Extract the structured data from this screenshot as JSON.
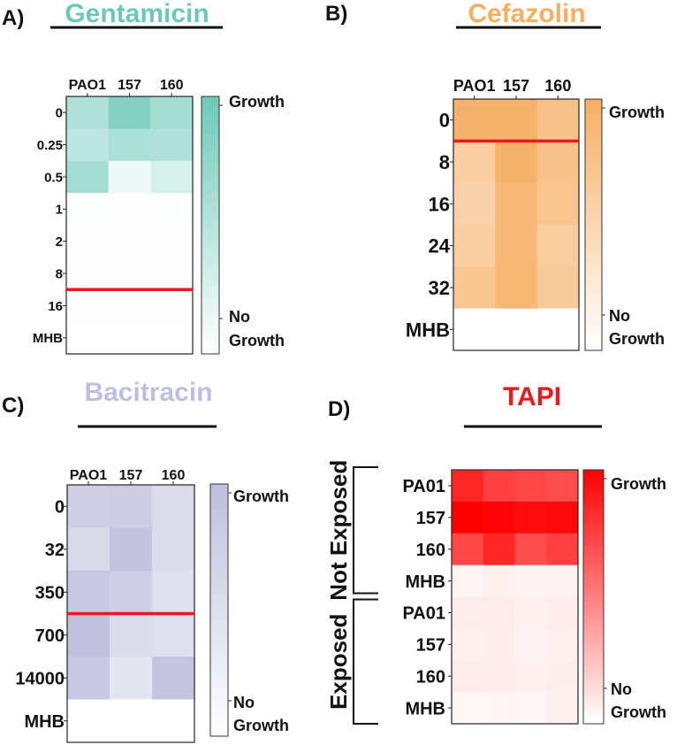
{
  "figure": {
    "background": "#ffffff"
  },
  "chart_data": [
    {
      "type": "heatmap",
      "panel_label": "A)",
      "title": "Gentamicin",
      "color": "#6cc9b6",
      "columns": [
        "PAO1",
        "157",
        "160"
      ],
      "rows": [
        "0",
        "0.25",
        "0.5",
        "1",
        "2",
        "8",
        "16",
        "MHB"
      ],
      "values": [
        [
          0.55,
          0.85,
          0.62
        ],
        [
          0.45,
          0.58,
          0.55
        ],
        [
          0.62,
          0.12,
          0.28
        ],
        [
          0.02,
          0.01,
          0.02
        ],
        [
          0.01,
          0.01,
          0.01
        ],
        [
          0.01,
          0.01,
          0.01
        ],
        [
          0.01,
          0.01,
          0.01
        ],
        [
          0.0,
          0.0,
          0.0
        ]
      ],
      "mic_line_after_row": "8",
      "mic_line_color": "#e41a1c",
      "legend": {
        "high": "Growth",
        "low_line1": "No",
        "low_line2": "Growth"
      }
    },
    {
      "type": "heatmap",
      "panel_label": "B)",
      "title": "Cefazolin",
      "color": "#f6ae62",
      "columns": [
        "PAO1",
        "157",
        "160"
      ],
      "rows": [
        "0",
        "8",
        "16",
        "24",
        "32",
        "MHB"
      ],
      "values": [
        [
          0.95,
          0.95,
          0.75
        ],
        [
          0.6,
          0.95,
          0.75
        ],
        [
          0.55,
          0.88,
          0.72
        ],
        [
          0.6,
          0.88,
          0.62
        ],
        [
          0.7,
          0.9,
          0.65
        ],
        [
          0.0,
          0.0,
          0.0
        ]
      ],
      "mic_line_after_row": "0",
      "mic_line_color": "#e41a1c",
      "legend": {
        "high": "Growth",
        "low_line1": "No",
        "low_line2": "Growth"
      }
    },
    {
      "type": "heatmap",
      "panel_label": "C)",
      "title": "Bacitracin",
      "color": "#bebedd",
      "columns": [
        "PAO1",
        "157",
        "160"
      ],
      "rows": [
        "0",
        "32",
        "350",
        "700",
        "14000",
        "MHB"
      ],
      "values": [
        [
          0.75,
          0.78,
          0.55
        ],
        [
          0.6,
          0.92,
          0.55
        ],
        [
          0.85,
          0.75,
          0.5
        ],
        [
          0.95,
          0.55,
          0.5
        ],
        [
          0.85,
          0.4,
          0.9
        ],
        [
          0.0,
          0.0,
          0.0
        ]
      ],
      "mic_line_after_row": "350",
      "mic_line_color": "#e41a1c",
      "legend": {
        "high": "Growth",
        "low_line1": "No",
        "low_line2": "Growth"
      }
    },
    {
      "type": "heatmap",
      "panel_label": "D)",
      "title": "TAPI",
      "title_color": "#e41a1c",
      "color": "#ff0000",
      "columns": [
        "",
        "",
        "",
        ""
      ],
      "rows": [
        "PA01",
        "157",
        "160",
        "MHB",
        "PA01",
        "157",
        "160",
        "MHB"
      ],
      "groups": [
        {
          "label": "Not Exposed",
          "rows": [
            "PA01",
            "157",
            "160",
            "MHB"
          ]
        },
        {
          "label": "Exposed",
          "rows": [
            "PA01",
            "157",
            "160",
            "MHB"
          ]
        }
      ],
      "values": [
        [
          0.85,
          0.75,
          0.72,
          0.7
        ],
        [
          1.0,
          0.98,
          0.95,
          0.97
        ],
        [
          0.72,
          0.85,
          0.7,
          0.75
        ],
        [
          0.04,
          0.06,
          0.05,
          0.05
        ],
        [
          0.08,
          0.08,
          0.06,
          0.07
        ],
        [
          0.06,
          0.07,
          0.05,
          0.06
        ],
        [
          0.08,
          0.07,
          0.06,
          0.07
        ],
        [
          0.03,
          0.04,
          0.03,
          0.06
        ]
      ],
      "legend": {
        "high": "Growth",
        "low_line1": "No",
        "low_line2": "Growth"
      }
    }
  ]
}
